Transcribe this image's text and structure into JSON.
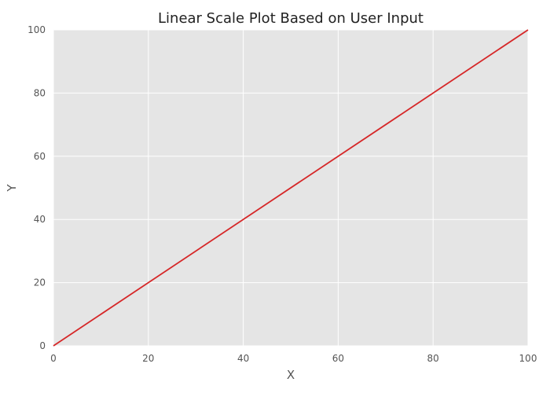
{
  "chart_data": {
    "type": "line",
    "title": "Linear Scale Plot Based on User Input",
    "xlabel": "X",
    "ylabel": "Y",
    "xlim": [
      0,
      100
    ],
    "ylim": [
      0,
      100
    ],
    "x_ticks": [
      0,
      20,
      40,
      60,
      80,
      100
    ],
    "y_ticks": [
      0,
      20,
      40,
      60,
      80,
      100
    ],
    "x_tick_labels": [
      "0",
      "20",
      "40",
      "60",
      "80",
      "100"
    ],
    "y_tick_labels": [
      "0",
      "20",
      "40",
      "60",
      "80",
      "100"
    ],
    "grid": true,
    "series": [
      {
        "x": [
          0,
          100
        ],
        "values": [
          0,
          100
        ],
        "color": "#d62728"
      }
    ]
  },
  "style": {
    "plot_background": "#e5e5e5",
    "grid_color": "#ffffff",
    "line_color": "#d62728"
  }
}
